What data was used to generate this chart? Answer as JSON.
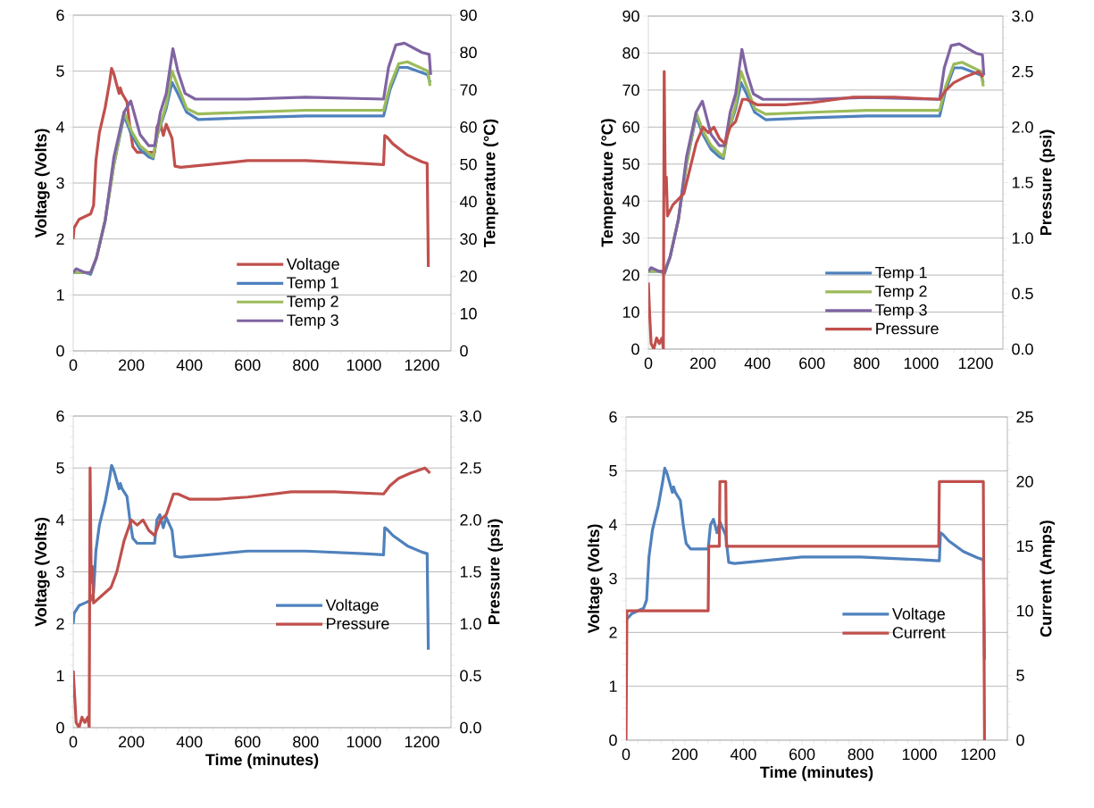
{
  "chart_data": [
    {
      "type": "line",
      "ylabel": "Voltage (Volts)",
      "y2label": "Temperature (°C)",
      "xlim": [
        0,
        1300
      ],
      "xticks": [
        0,
        200,
        400,
        600,
        800,
        1000,
        1200
      ],
      "ylim": [
        0,
        6
      ],
      "yticks": [
        0,
        1,
        2,
        3,
        4,
        5,
        6
      ],
      "y2lim": [
        0,
        90
      ],
      "y2ticks": [
        0,
        10,
        20,
        30,
        40,
        50,
        60,
        70,
        80,
        90
      ],
      "grid": "y",
      "legend": "bottom",
      "series": [
        {
          "name": "Voltage",
          "color": "#c0504d",
          "x": [
            0,
            3,
            20,
            40,
            60,
            70,
            78,
            90,
            110,
            125,
            132,
            140,
            150,
            158,
            162,
            168,
            185,
            195,
            205,
            220,
            250,
            280,
            288,
            298,
            310,
            320,
            332,
            340,
            350,
            370,
            450,
            600,
            800,
            1000,
            1068,
            1072,
            1080,
            1100,
            1150,
            1200,
            1218,
            1222
          ],
          "values": [
            2.0,
            2.2,
            2.35,
            2.4,
            2.45,
            2.6,
            3.4,
            3.9,
            4.35,
            4.8,
            5.05,
            4.95,
            4.75,
            4.6,
            4.7,
            4.6,
            4.45,
            4.0,
            3.65,
            3.55,
            3.55,
            3.55,
            4.0,
            4.1,
            3.85,
            4.05,
            3.9,
            3.8,
            3.3,
            3.28,
            3.32,
            3.4,
            3.4,
            3.35,
            3.33,
            3.85,
            3.82,
            3.7,
            3.5,
            3.38,
            3.35,
            1.5
          ]
        },
        {
          "name": "Temp 1",
          "color": "#4f81bd",
          "axis": "y2",
          "x": [
            0,
            40,
            60,
            80,
            110,
            140,
            175,
            200,
            230,
            260,
            275,
            290,
            320,
            340,
            360,
            390,
            430,
            600,
            800,
            1068,
            1090,
            1120,
            1150,
            1220,
            1228
          ],
          "values": [
            21,
            21,
            20.5,
            25,
            35,
            50,
            63,
            58,
            54,
            52,
            51.5,
            58,
            65,
            72,
            69,
            64,
            62,
            62.5,
            63,
            63,
            70,
            76,
            76,
            74,
            72
          ]
        },
        {
          "name": "Temp 2",
          "color": "#9bbb59",
          "axis": "y2",
          "x": [
            0,
            40,
            60,
            80,
            110,
            140,
            175,
            200,
            230,
            260,
            275,
            290,
            320,
            340,
            360,
            390,
            430,
            600,
            800,
            1068,
            1090,
            1120,
            1150,
            1220,
            1228
          ],
          "values": [
            21,
            21,
            21,
            25,
            35,
            50,
            64,
            59,
            55,
            53,
            52,
            58,
            66,
            75,
            71,
            65,
            63.5,
            64,
            64.5,
            64.5,
            71,
            77,
            77.5,
            75,
            71
          ]
        },
        {
          "name": "Temp 3",
          "color": "#8064a2",
          "axis": "y2",
          "x": [
            0,
            10,
            40,
            60,
            80,
            110,
            140,
            175,
            198,
            230,
            260,
            280,
            300,
            320,
            343,
            360,
            385,
            420,
            600,
            800,
            1068,
            1085,
            1110,
            1140,
            1200,
            1225,
            1230
          ],
          "values": [
            21,
            22,
            21,
            21,
            25,
            35,
            52,
            64,
            67,
            58,
            55,
            55,
            64,
            69,
            81,
            75,
            69,
            67.5,
            67.5,
            68,
            67.5,
            76,
            82,
            82.5,
            80,
            79.5,
            74
          ]
        }
      ]
    },
    {
      "type": "line",
      "ylabel": "Temperature (°C)",
      "y2label": "Pressure (psi)",
      "xlim": [
        0,
        1300
      ],
      "xticks": [
        0,
        200,
        400,
        600,
        800,
        1000,
        1200
      ],
      "ylim": [
        0,
        90
      ],
      "yticks": [
        0,
        10,
        20,
        30,
        40,
        50,
        60,
        70,
        80,
        90
      ],
      "y2lim": [
        0,
        3
      ],
      "y2ticks": [
        {
          "value": 0,
          "label": "0.0"
        },
        {
          "value": 0.5,
          "label": "0.5"
        },
        {
          "value": 1,
          "label": "1.0"
        },
        {
          "value": 1.5,
          "label": "1.5"
        },
        {
          "value": 2,
          "label": "2.0"
        },
        {
          "value": 2.5,
          "label": "2.5"
        },
        {
          "value": 3,
          "label": "3.0"
        }
      ],
      "grid": "y",
      "legend": "bottom right",
      "series": [
        {
          "name": "Temp 1",
          "color": "#4f81bd",
          "x": [
            0,
            40,
            60,
            80,
            110,
            140,
            175,
            200,
            230,
            260,
            275,
            290,
            320,
            340,
            360,
            390,
            430,
            600,
            800,
            1068,
            1090,
            1120,
            1150,
            1220,
            1228
          ],
          "values": [
            21,
            21,
            20.5,
            25,
            35,
            50,
            63,
            58,
            54,
            52,
            51.5,
            58,
            65,
            72,
            69,
            64,
            62,
            62.5,
            63,
            63,
            70,
            76,
            76,
            74,
            72
          ]
        },
        {
          "name": "Temp 2",
          "color": "#9bbb59",
          "x": [
            0,
            40,
            60,
            80,
            110,
            140,
            175,
            200,
            230,
            260,
            275,
            290,
            320,
            340,
            360,
            390,
            430,
            600,
            800,
            1068,
            1090,
            1120,
            1150,
            1220,
            1228
          ],
          "values": [
            21,
            21,
            21,
            25,
            35,
            50,
            64,
            59,
            55,
            53,
            52,
            58,
            66,
            75,
            71,
            65,
            63.5,
            64,
            64.5,
            64.5,
            71,
            77,
            77.5,
            75,
            71
          ]
        },
        {
          "name": "Temp 3",
          "color": "#8064a2",
          "x": [
            0,
            10,
            40,
            60,
            80,
            110,
            140,
            175,
            198,
            230,
            260,
            280,
            300,
            320,
            343,
            360,
            385,
            420,
            600,
            800,
            1068,
            1085,
            1110,
            1140,
            1200,
            1225,
            1230
          ],
          "values": [
            21,
            22,
            21,
            21,
            25,
            35,
            52,
            64,
            67,
            58,
            55,
            55,
            64,
            69,
            81,
            75,
            69,
            67.5,
            67.5,
            68,
            67.5,
            76,
            82,
            82.5,
            80,
            79.5,
            74
          ]
        },
        {
          "name": "Pressure",
          "color": "#c0504d",
          "axis": "y2",
          "x": [
            0,
            5,
            10,
            20,
            30,
            40,
            50,
            55,
            58,
            62,
            66,
            70,
            90,
            110,
            130,
            150,
            175,
            200,
            220,
            240,
            260,
            280,
            300,
            320,
            345,
            360,
            400,
            500,
            600,
            750,
            900,
            1068,
            1090,
            1120,
            1160,
            1210,
            1228
          ],
          "values": [
            0.6,
            0.3,
            0.05,
            0.0,
            0.1,
            0.05,
            0.1,
            0.0,
            2.5,
            1.4,
            1.55,
            1.2,
            1.3,
            1.35,
            1.4,
            1.6,
            1.85,
            2.0,
            1.95,
            2.0,
            1.9,
            1.85,
            2.0,
            2.05,
            2.25,
            2.25,
            2.2,
            2.2,
            2.22,
            2.27,
            2.27,
            2.25,
            2.33,
            2.4,
            2.45,
            2.5,
            2.45
          ]
        }
      ]
    },
    {
      "type": "line",
      "xlabel": "Time (minutes)",
      "ylabel": "Voltage (Volts)",
      "y2label": "Pressure (psi)",
      "xlim": [
        0,
        1300
      ],
      "xticks": [
        0,
        200,
        400,
        600,
        800,
        1000,
        1200
      ],
      "ylim": [
        0,
        6
      ],
      "yticks": [
        0,
        1,
        2,
        3,
        4,
        5,
        6
      ],
      "y2lim": [
        0,
        3
      ],
      "y2ticks": [
        {
          "value": 0,
          "label": "0.0"
        },
        {
          "value": 0.5,
          "label": "0.5"
        },
        {
          "value": 1,
          "label": "1.0"
        },
        {
          "value": 1.5,
          "label": "1.5"
        },
        {
          "value": 2,
          "label": "2.0"
        },
        {
          "value": 2.5,
          "label": "2.5"
        },
        {
          "value": 3,
          "label": "3.0"
        }
      ],
      "grid": "y",
      "legend": "right",
      "series": [
        {
          "name": "Voltage",
          "color": "#4f81bd",
          "x": [
            0,
            3,
            20,
            40,
            60,
            70,
            78,
            90,
            110,
            125,
            132,
            140,
            150,
            158,
            162,
            168,
            185,
            195,
            205,
            220,
            250,
            280,
            288,
            298,
            310,
            320,
            332,
            340,
            350,
            370,
            450,
            600,
            800,
            1000,
            1068,
            1072,
            1080,
            1100,
            1150,
            1200,
            1218,
            1222
          ],
          "values": [
            2.0,
            2.2,
            2.35,
            2.4,
            2.45,
            2.6,
            3.4,
            3.9,
            4.35,
            4.8,
            5.05,
            4.95,
            4.75,
            4.6,
            4.7,
            4.6,
            4.45,
            4.0,
            3.65,
            3.55,
            3.55,
            3.55,
            4.0,
            4.1,
            3.85,
            4.05,
            3.9,
            3.8,
            3.3,
            3.28,
            3.32,
            3.4,
            3.4,
            3.35,
            3.33,
            3.85,
            3.82,
            3.7,
            3.5,
            3.38,
            3.35,
            1.5
          ]
        },
        {
          "name": "Pressure",
          "color": "#c0504d",
          "axis": "y2",
          "x": [
            0,
            5,
            10,
            20,
            30,
            40,
            50,
            55,
            58,
            62,
            66,
            70,
            90,
            110,
            130,
            150,
            175,
            200,
            220,
            240,
            260,
            280,
            300,
            320,
            345,
            360,
            400,
            500,
            600,
            750,
            900,
            1068,
            1090,
            1120,
            1160,
            1210,
            1228
          ],
          "values": [
            0.55,
            0.3,
            0.05,
            0.0,
            0.1,
            0.05,
            0.1,
            0.0,
            2.5,
            1.4,
            1.55,
            1.2,
            1.25,
            1.3,
            1.35,
            1.5,
            1.8,
            2.0,
            1.95,
            2.0,
            1.9,
            1.85,
            2.0,
            2.05,
            2.25,
            2.25,
            2.2,
            2.2,
            2.22,
            2.27,
            2.27,
            2.25,
            2.33,
            2.4,
            2.45,
            2.5,
            2.45
          ]
        }
      ]
    },
    {
      "type": "line",
      "xlabel": "Time (minutes)",
      "ylabel": "Voltage (Volts)",
      "y2label": "Current (Amps)",
      "xlim": [
        0,
        1300
      ],
      "xticks": [
        0,
        200,
        400,
        600,
        800,
        1000,
        1200
      ],
      "ylim": [
        0,
        6
      ],
      "yticks": [
        0,
        1,
        2,
        3,
        4,
        5,
        6
      ],
      "y2lim": [
        0,
        25
      ],
      "y2ticks": [
        0,
        5,
        10,
        15,
        20,
        25
      ],
      "grid": "y",
      "legend": "right",
      "series": [
        {
          "name": "Voltage",
          "color": "#4f81bd",
          "x": [
            0,
            3,
            20,
            40,
            60,
            70,
            78,
            90,
            110,
            125,
            132,
            140,
            150,
            158,
            162,
            168,
            185,
            195,
            205,
            220,
            250,
            280,
            288,
            298,
            310,
            320,
            332,
            340,
            350,
            370,
            450,
            600,
            800,
            1000,
            1068,
            1072,
            1080,
            1100,
            1150,
            1200,
            1218,
            1222
          ],
          "values": [
            2.2,
            2.25,
            2.35,
            2.4,
            2.45,
            2.6,
            3.4,
            3.9,
            4.35,
            4.8,
            5.05,
            4.95,
            4.75,
            4.6,
            4.7,
            4.6,
            4.45,
            4.0,
            3.65,
            3.55,
            3.55,
            3.55,
            4.0,
            4.1,
            3.85,
            4.05,
            3.9,
            3.8,
            3.3,
            3.28,
            3.32,
            3.4,
            3.4,
            3.35,
            3.33,
            3.85,
            3.82,
            3.7,
            3.5,
            3.38,
            3.35,
            1.5
          ]
        },
        {
          "name": "Current",
          "color": "#c0504d",
          "axis": "y2",
          "x": [
            0,
            3,
            280,
            282,
            318,
            320,
            340,
            342,
            1066,
            1068,
            1218,
            1222
          ],
          "values": [
            0,
            10,
            10,
            15,
            15,
            20,
            20,
            15,
            15,
            20,
            20,
            0
          ]
        }
      ]
    }
  ]
}
